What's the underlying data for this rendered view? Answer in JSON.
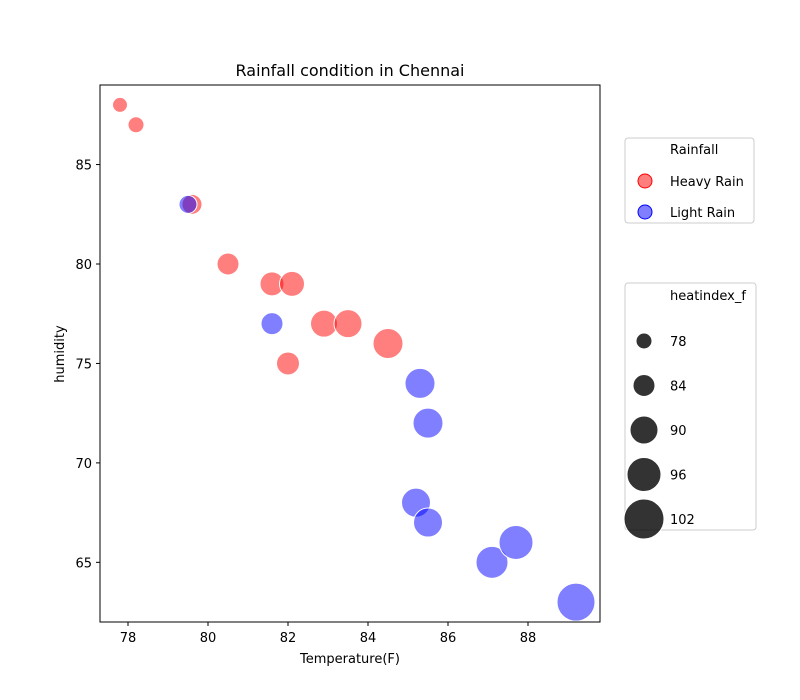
{
  "chart_data": {
    "type": "scatter",
    "title": "Rainfall condition in Chennai",
    "xlabel": "Temperature(F)",
    "ylabel": "humidity",
    "xlim": [
      77.3,
      89.8
    ],
    "ylim": [
      62.0,
      89.0
    ],
    "xticks": [
      78,
      80,
      82,
      84,
      86,
      88
    ],
    "yticks": [
      65,
      70,
      75,
      80,
      85
    ],
    "grid": false,
    "series": [
      {
        "name": "Heavy Rain",
        "color": "#ff0000",
        "points": [
          {
            "x": 77.8,
            "y": 88,
            "heatindex_f": 77
          },
          {
            "x": 78.2,
            "y": 87,
            "heatindex_f": 78
          },
          {
            "x": 79.6,
            "y": 83,
            "heatindex_f": 82
          },
          {
            "x": 80.5,
            "y": 80,
            "heatindex_f": 84
          },
          {
            "x": 81.6,
            "y": 79,
            "heatindex_f": 86
          },
          {
            "x": 82.1,
            "y": 79,
            "heatindex_f": 87
          },
          {
            "x": 82.0,
            "y": 75,
            "heatindex_f": 85
          },
          {
            "x": 82.9,
            "y": 77,
            "heatindex_f": 89
          },
          {
            "x": 83.5,
            "y": 77,
            "heatindex_f": 90
          },
          {
            "x": 84.5,
            "y": 76,
            "heatindex_f": 92
          }
        ]
      },
      {
        "name": "Light Rain",
        "color": "#0000ff",
        "points": [
          {
            "x": 79.5,
            "y": 83,
            "heatindex_f": 80
          },
          {
            "x": 81.6,
            "y": 77,
            "heatindex_f": 84
          },
          {
            "x": 85.3,
            "y": 74,
            "heatindex_f": 92
          },
          {
            "x": 85.5,
            "y": 72,
            "heatindex_f": 92
          },
          {
            "x": 85.2,
            "y": 68,
            "heatindex_f": 91
          },
          {
            "x": 85.5,
            "y": 67,
            "heatindex_f": 91
          },
          {
            "x": 87.1,
            "y": 65,
            "heatindex_f": 94
          },
          {
            "x": 87.7,
            "y": 66,
            "heatindex_f": 96
          },
          {
            "x": 89.2,
            "y": 63,
            "heatindex_f": 100
          }
        ]
      }
    ],
    "hue_legend": {
      "title": "Rainfall",
      "placement": "upper right outside",
      "items": [
        {
          "label": "Heavy Rain",
          "color": "#ff0000"
        },
        {
          "label": "Light Rain",
          "color": "#0000ff"
        }
      ]
    },
    "size_legend": {
      "title": "heatindex_f",
      "placement": "right outside",
      "color": "#000000",
      "items": [
        {
          "label": "78",
          "value": 78
        },
        {
          "label": "84",
          "value": 84
        },
        {
          "label": "90",
          "value": 90
        },
        {
          "label": "96",
          "value": 96
        },
        {
          "label": "102",
          "value": 102
        }
      ]
    }
  }
}
